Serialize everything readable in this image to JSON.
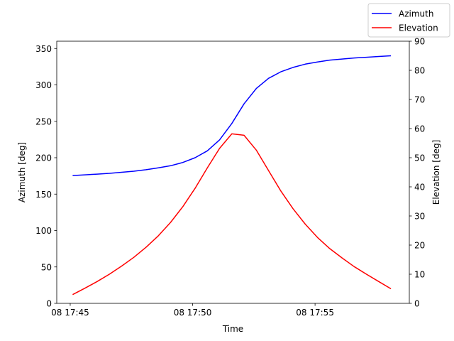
{
  "chart_data": {
    "type": "line",
    "xlabel": "Time",
    "ylabel_left": "Azimuth [deg]",
    "ylabel_right": "Elevation [deg]",
    "x_ticks": [
      "08 17:45",
      "08 17:50",
      "08 17:55"
    ],
    "y_left_ticks": [
      "0",
      "50",
      "100",
      "150",
      "200",
      "250",
      "300",
      "350"
    ],
    "y_right_ticks": [
      "0",
      "10",
      "20",
      "30",
      "40",
      "50",
      "60",
      "70",
      "80",
      "90"
    ],
    "x_ticks_minutes": [
      45,
      50,
      55
    ],
    "xlim_minutes": [
      44.45,
      58.85
    ],
    "ylim_left": [
      0,
      360
    ],
    "ylim_right": [
      0,
      90
    ],
    "legend_position": "upper-right, outside plot",
    "grid": false,
    "x_minutes": [
      45.1,
      45.6,
      46.1,
      46.6,
      47.1,
      47.6,
      48.1,
      48.6,
      49.1,
      49.6,
      50.1,
      50.6,
      51.1,
      51.6,
      52.1,
      52.6,
      53.1,
      53.6,
      54.1,
      54.6,
      55.1,
      55.6,
      56.1,
      56.6,
      57.1,
      57.6,
      58.1
    ],
    "series": [
      {
        "name": "Azimuth",
        "axis": "left",
        "color": "#0000ff",
        "values": [
          175.5,
          176.5,
          177.5,
          178.5,
          180,
          181.5,
          183.5,
          186,
          189,
          193.5,
          200,
          209.5,
          224.5,
          247,
          274,
          295,
          309,
          318,
          324,
          328.5,
          331.5,
          334,
          335.5,
          337,
          338,
          339,
          340
        ]
      },
      {
        "name": "Elevation",
        "axis": "right",
        "color": "#ff0000",
        "values": [
          3,
          5.2,
          7.5,
          10,
          12.8,
          15.8,
          19.3,
          23.2,
          27.8,
          33.2,
          39.5,
          46.5,
          53.2,
          58.2,
          57.7,
          52.6,
          45.6,
          38.6,
          32.5,
          27.2,
          22.6,
          18.8,
          15.6,
          12.6,
          10,
          7.5,
          5
        ]
      }
    ]
  }
}
